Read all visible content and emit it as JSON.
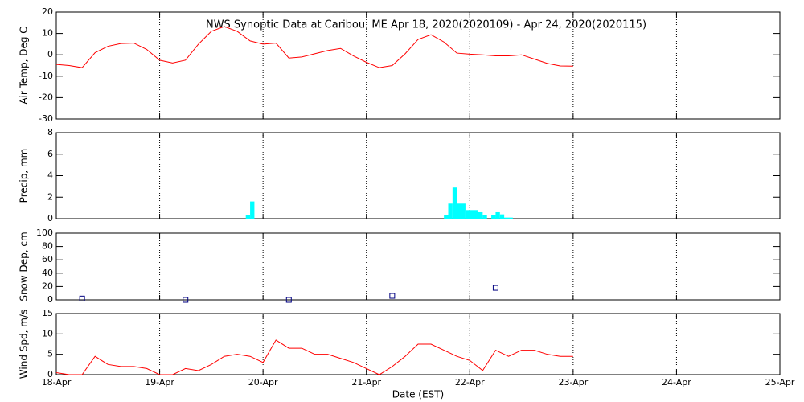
{
  "chart_data": [
    {
      "type": "line",
      "title": "NWS Synoptic Data at Caribou, ME   Apr 18, 2020(2020109) - Apr 24, 2020(2020115)",
      "ylabel": "Air Temp, Deg C",
      "xlim": [
        0,
        168
      ],
      "xticks": [
        0,
        24,
        48,
        72,
        96,
        120,
        144,
        168
      ],
      "ylim": [
        -30,
        20
      ],
      "yticks": [
        -30,
        -20,
        -10,
        0,
        10,
        20
      ],
      "grid": true,
      "x": [
        0,
        3,
        6,
        9,
        12,
        15,
        18,
        21,
        24,
        27,
        30,
        33,
        36,
        39,
        42,
        45,
        48,
        51,
        54,
        57,
        60,
        63,
        66,
        69,
        72,
        75,
        78,
        81,
        84,
        87,
        90,
        93,
        96,
        99,
        102,
        105,
        108,
        111,
        114,
        117,
        120
      ],
      "series": [
        {
          "name": "Air Temp",
          "color": "#ff0000",
          "values": [
            -4.5,
            -5,
            -6,
            1,
            4,
            5.3,
            5.5,
            2.5,
            -2.5,
            -3.8,
            -2.5,
            5,
            11,
            13.2,
            11,
            6.5,
            5,
            5.5,
            -1.5,
            -1,
            0.5,
            2,
            3,
            -0.5,
            -3.5,
            -6,
            -5,
            0.5,
            7.2,
            9.4,
            6,
            0.8,
            0.3,
            0,
            -0.5,
            -0.5,
            0,
            -2,
            -4,
            -5.2,
            -5.3
          ]
        }
      ]
    },
    {
      "type": "bar",
      "ylabel": "Precip, mm",
      "xlim": [
        0,
        168
      ],
      "xticks": [
        0,
        24,
        48,
        72,
        96,
        120,
        144,
        168
      ],
      "ylim": [
        0,
        8
      ],
      "yticks": [
        0,
        2,
        4,
        6,
        8
      ],
      "grid": true,
      "x": [
        44,
        45,
        90,
        91,
        92,
        93,
        94,
        95,
        96,
        97,
        98,
        99,
        101,
        102,
        103,
        104,
        105
      ],
      "series": [
        {
          "name": "Precip",
          "color": "#00ffff",
          "values": [
            0.3,
            1.6,
            0.3,
            1.4,
            2.9,
            1.4,
            1.4,
            0.8,
            0.8,
            0.8,
            0.6,
            0.3,
            0.3,
            0.6,
            0.4,
            0.1,
            0.1
          ]
        }
      ]
    },
    {
      "type": "scatter",
      "ylabel": "Snow Dep, cm",
      "xlim": [
        0,
        168
      ],
      "xticks": [
        0,
        24,
        48,
        72,
        96,
        120,
        144,
        168
      ],
      "ylim": [
        0,
        100
      ],
      "yticks": [
        0,
        20,
        40,
        60,
        80,
        100
      ],
      "grid": true,
      "x": [
        6,
        30,
        54,
        78,
        102
      ],
      "series": [
        {
          "name": "Snow Depth",
          "color": "#000080",
          "values": [
            2,
            0,
            0,
            6,
            18
          ]
        }
      ]
    },
    {
      "type": "line",
      "ylabel": "Wind Spd, m/s",
      "xlabel": "Date (EST)",
      "xlim": [
        0,
        168
      ],
      "xticks": [
        {
          "value": 0,
          "label": "18-Apr"
        },
        {
          "value": 24,
          "label": "19-Apr"
        },
        {
          "value": 48,
          "label": "20-Apr"
        },
        {
          "value": 72,
          "label": "21-Apr"
        },
        {
          "value": 96,
          "label": "22-Apr"
        },
        {
          "value": 120,
          "label": "23-Apr"
        },
        {
          "value": 144,
          "label": "24-Apr"
        },
        {
          "value": 168,
          "label": "25-Apr"
        }
      ],
      "ylim": [
        0,
        15
      ],
      "yticks": [
        0,
        5,
        10,
        15
      ],
      "grid": true,
      "x": [
        0,
        3,
        6,
        9,
        12,
        15,
        18,
        21,
        24,
        27,
        30,
        33,
        36,
        39,
        42,
        45,
        48,
        51,
        54,
        57,
        60,
        63,
        66,
        69,
        72,
        75,
        78,
        81,
        84,
        87,
        90,
        93,
        96,
        99,
        102,
        105,
        108,
        111,
        114,
        117,
        120
      ],
      "series": [
        {
          "name": "Wind Speed",
          "color": "#ff0000",
          "values": [
            0.5,
            0,
            0,
            4.5,
            2.5,
            2,
            2,
            1.5,
            0,
            0,
            1.5,
            1,
            2.5,
            4.5,
            5,
            4.5,
            3,
            8.5,
            6.5,
            6.5,
            5,
            5,
            4,
            3,
            1.5,
            0,
            2,
            4.5,
            7.5,
            7.5,
            6,
            4.5,
            3.5,
            1,
            6,
            4.5,
            6,
            6,
            5,
            4.5,
            4.5
          ]
        }
      ]
    }
  ]
}
